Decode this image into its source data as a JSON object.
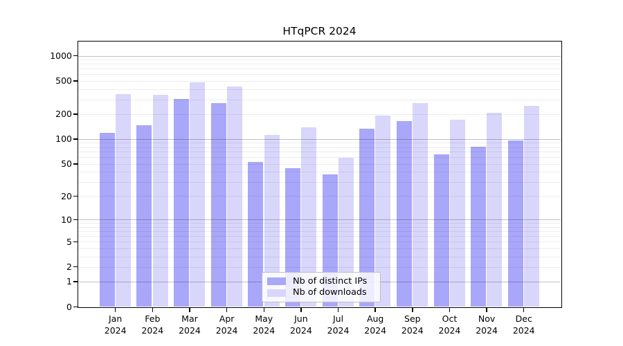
{
  "title": "HTqPCR 2024",
  "legend": {
    "items": [
      {
        "label": "Nb of distinct IPs",
        "color": "#a9a7f9"
      },
      {
        "label": "Nb of downloads",
        "color": "#d8d6fa"
      }
    ]
  },
  "chart_data": {
    "type": "bar",
    "title": "HTqPCR 2024",
    "categories": [
      "Jan 2024",
      "Feb 2024",
      "Mar 2024",
      "Apr 2024",
      "May 2024",
      "Jun 2024",
      "Jul 2024",
      "Aug 2024",
      "Sep 2024",
      "Oct 2024",
      "Nov 2024",
      "Dec 2024"
    ],
    "series": [
      {
        "name": "Nb of distinct IPs",
        "color": "#a9a7f9",
        "values": [
          119,
          148,
          305,
          269,
          53,
          44,
          37,
          133,
          165,
          65,
          81,
          97
        ]
      },
      {
        "name": "Nb of downloads",
        "color": "#d8d6fa",
        "values": [
          349,
          343,
          477,
          431,
          112,
          138,
          59,
          191,
          271,
          170,
          206,
          249
        ]
      }
    ],
    "yscale": "log10(value+1)",
    "yticks": [
      0,
      1,
      2,
      5,
      10,
      20,
      50,
      100,
      200,
      500,
      1000
    ],
    "ylim": [
      0,
      1480
    ],
    "grid": "major and minor horizontal gridlines, drawn over bars",
    "legend_position": "lower center"
  }
}
